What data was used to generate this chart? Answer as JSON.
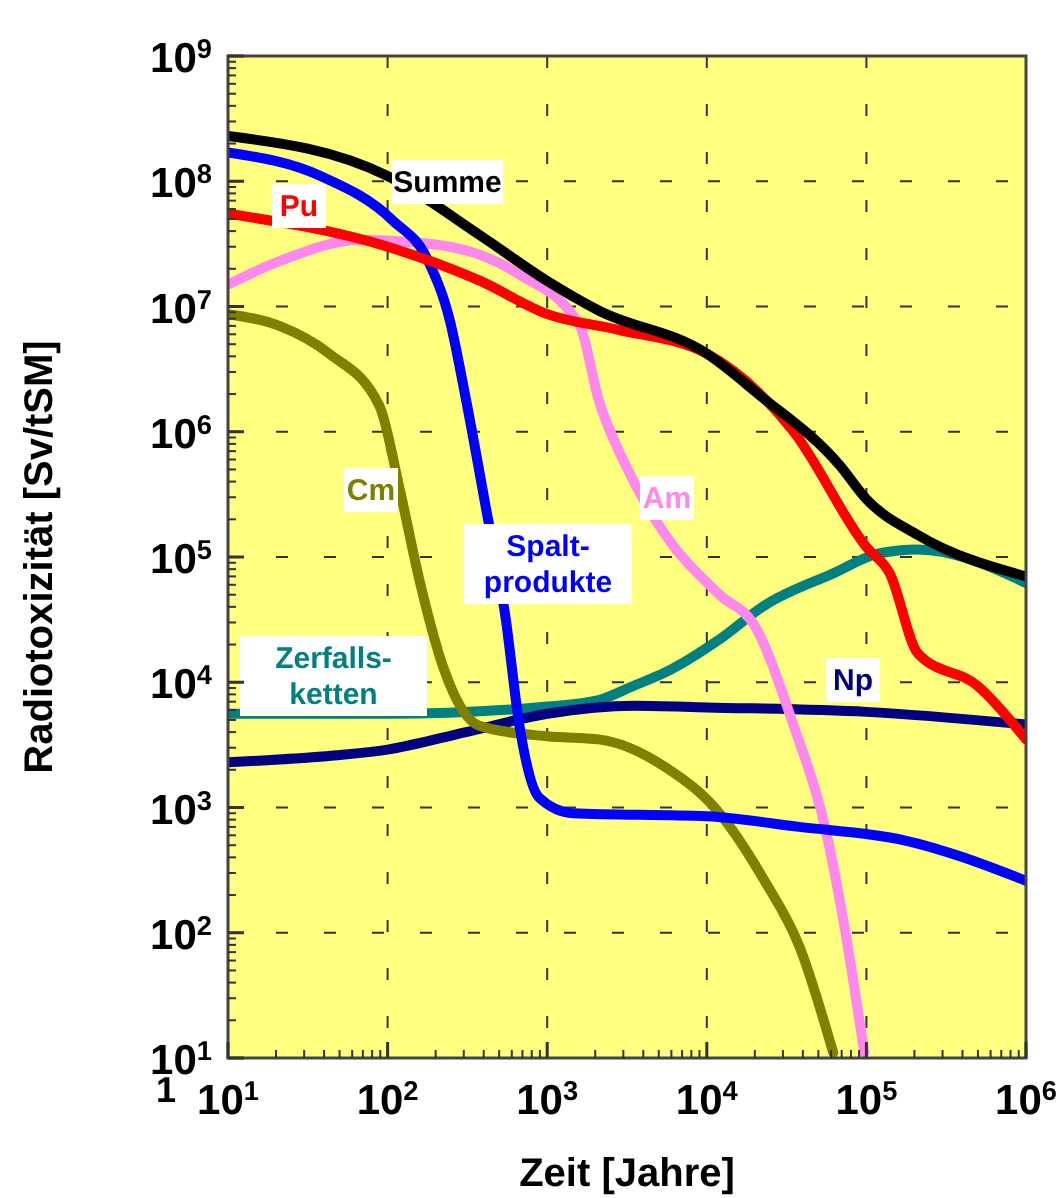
{
  "chart_data": {
    "type": "line",
    "xlabel": "Zeit [Jahre]",
    "ylabel": "Radiotoxizität [Sv/tSM]",
    "log": "xy",
    "grid": true,
    "line_style": "solid",
    "marker": "none",
    "xlim": [
      10,
      1000000
    ],
    "ylim": [
      10,
      1000000000
    ],
    "xticks": [
      {
        "value": 10,
        "label": "10$^{1}$"
      },
      {
        "value": 100,
        "label": "10$^{2}$"
      },
      {
        "value": 1000,
        "label": "10$^{3}$"
      },
      {
        "value": 10000,
        "label": "10$^{4}$"
      },
      {
        "value": 100000,
        "label": "10$^{5}$"
      },
      {
        "value": 1000000,
        "label": "10$^{6}$"
      }
    ],
    "yticks": [
      {
        "value": 10,
        "label": "10$^{1}$"
      },
      {
        "value": 100,
        "label": "10$^{2}$"
      },
      {
        "value": 1000,
        "label": "10$^{3}$"
      },
      {
        "value": 10000,
        "label": "10$^{4}$"
      },
      {
        "value": 100000,
        "label": "10$^{5}$"
      },
      {
        "value": 1000000,
        "label": "10$^{6}$"
      },
      {
        "value": 10000000,
        "label": "10$^{7}$"
      },
      {
        "value": 100000000,
        "label": "10$^{8}$"
      },
      {
        "value": 1000000000,
        "label": "10$^{9}$"
      }
    ],
    "annotations": [
      "1"
    ],
    "series": [
      {
        "name": "Zerfalls-\nketten",
        "color": "#008080",
        "x": [
          10,
          100,
          1000,
          2100,
          3500,
          5500,
          12000,
          23000,
          62000,
          120000,
          210000,
          1000000
        ],
        "values": [
          5600,
          5600,
          6400,
          7200,
          9400,
          12000,
          22000,
          41000,
          74000,
          107000,
          115000,
          62000
        ]
      },
      {
        "name": "Np",
        "color": "#000080",
        "x": [
          10,
          46,
          100,
          310,
          1000,
          3500,
          10000,
          100000,
          1000000
        ],
        "values": [
          2300,
          2600,
          2900,
          4000,
          5600,
          6500,
          6300,
          5800,
          4600
        ]
      },
      {
        "name": "Cm",
        "color": "#808000",
        "x": [
          10,
          21,
          43,
          89,
          119,
          158,
          224,
          375,
          1000,
          2100,
          5500,
          12000,
          23000,
          38000,
          62000
        ],
        "values": [
          8700000,
          7000000,
          4200000,
          1600000,
          350000,
          66000,
          13000,
          4500,
          3700,
          3500,
          2100,
          900,
          260,
          78,
          11
        ]
      },
      {
        "name": "Am",
        "color": "#ff88ee",
        "x": [
          10,
          21,
          67,
          210,
          670,
          1600,
          2100,
          3100,
          5500,
          12000,
          20000,
          35000,
          55000,
          73000,
          97000
        ],
        "values": [
          15000000,
          23000000,
          34000000,
          31000000,
          18000000,
          7000000,
          1800000,
          540000,
          150000,
          50000,
          28000,
          4500,
          700,
          110,
          11
        ]
      },
      {
        "name": "Spalt-\nprodukte",
        "color": "#0000ff",
        "x": [
          10,
          38,
          107,
          180,
          245,
          310,
          410,
          550,
          670,
          890,
          1450,
          10000,
          38000,
          170000,
          1000000
        ],
        "values": [
          170000000,
          110000000,
          49000000,
          23000000,
          7800000,
          1800000,
          260000,
          32000,
          4500,
          1200,
          900,
          850,
          700,
          550,
          260
        ]
      },
      {
        "name": "Pu",
        "color": "#ff0000",
        "x": [
          10,
          100,
          380,
          1000,
          2800,
          10000,
          35000,
          100000,
          140000,
          210000,
          500000,
          1000000
        ],
        "values": [
          55000000,
          30000000,
          16000000,
          8700000,
          6500000,
          4200000,
          1000000,
          120000,
          74000,
          17000,
          9300,
          3500
        ]
      },
      {
        "name": "Summe",
        "color": "#000000",
        "x": [
          10,
          100,
          380,
          1000,
          2100,
          10000,
          21000,
          68000,
          100000,
          210000,
          1000000
        ],
        "values": [
          230000000,
          110000000,
          37000000,
          16000000,
          9300000,
          4200000,
          2000000,
          540000,
          290000,
          150000,
          70000
        ]
      }
    ]
  }
}
